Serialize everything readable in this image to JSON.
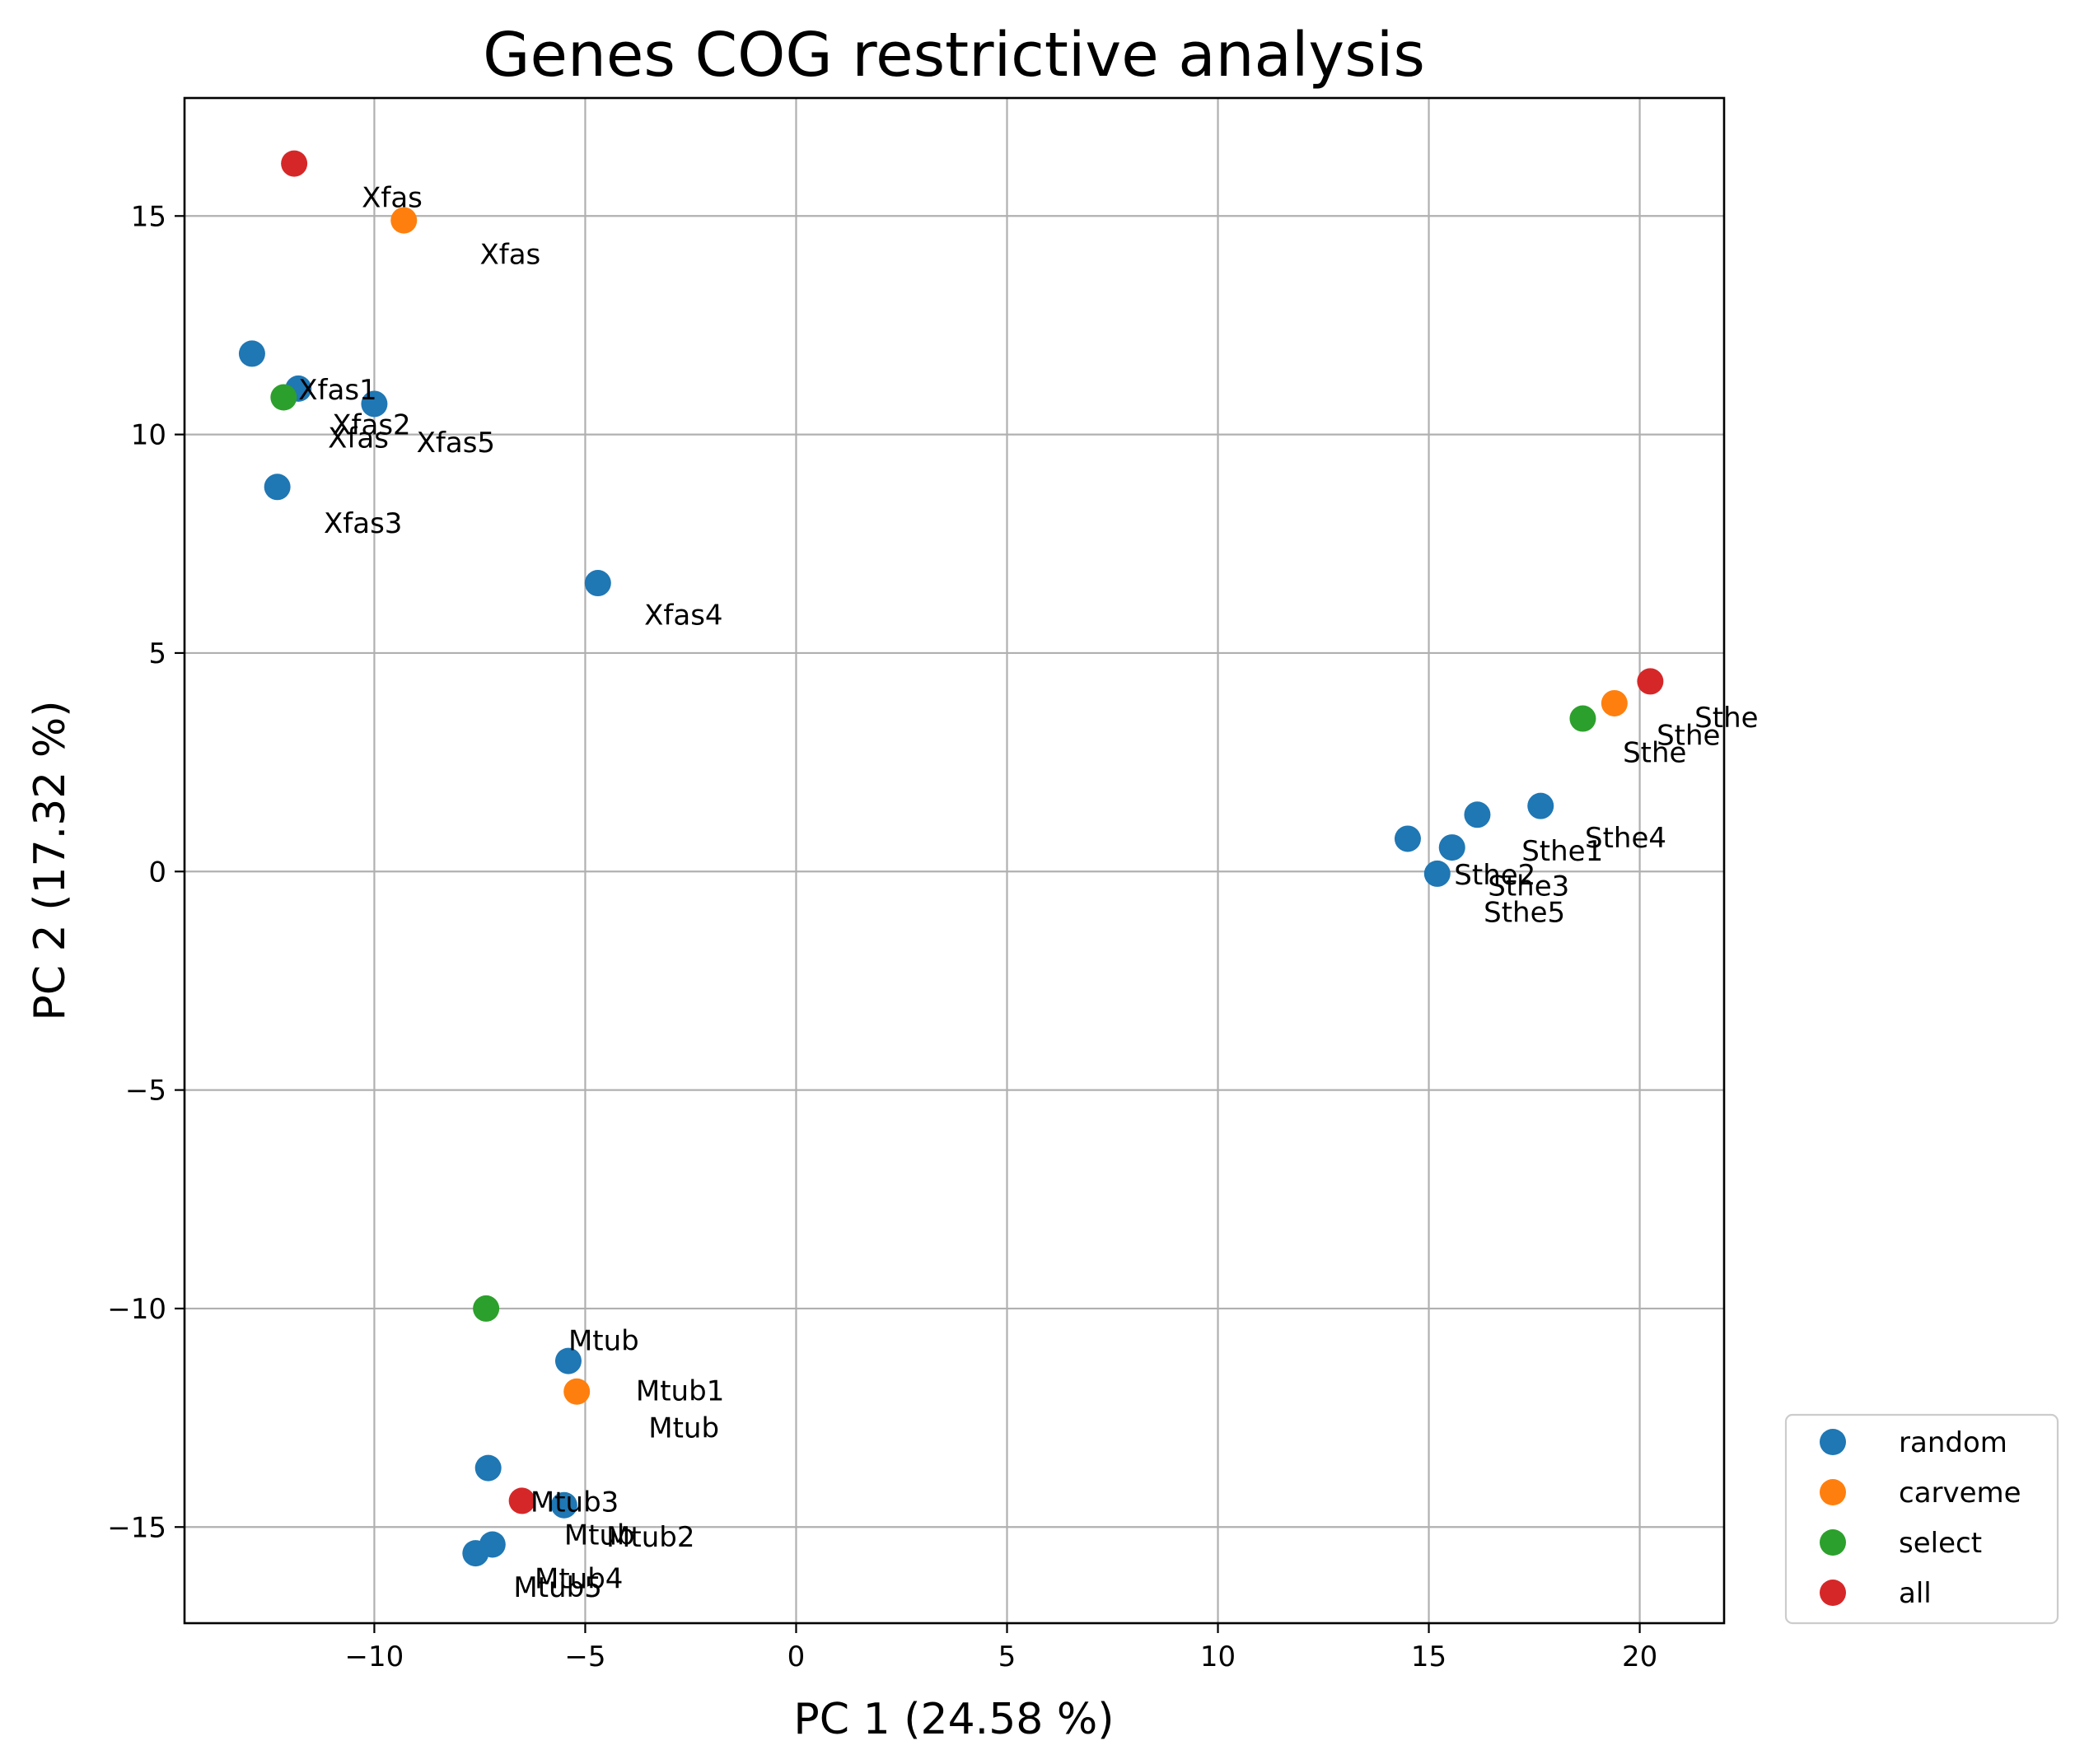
{
  "chart_data": {
    "type": "scatter",
    "title": "Genes COG restrictive analysis",
    "xlabel": "PC 1 (24.58 %)",
    "ylabel": "PC 2 (17.32 %)",
    "xlim": [
      -14.5,
      22
    ],
    "ylim": [
      -17.2,
      17.7
    ],
    "xticks": [
      -10,
      -5,
      0,
      5,
      10,
      15,
      20
    ],
    "yticks": [
      -15,
      -10,
      -5,
      0,
      5,
      10,
      15
    ],
    "grid": true,
    "legend_position": "outside-bottom-right",
    "series": [
      {
        "name": "random",
        "color": "#1f77b4",
        "points": [
          {
            "x": -12.9,
            "y": 11.85
          },
          {
            "x": -11.8,
            "y": 11.05
          },
          {
            "x": -10.0,
            "y": 10.7
          },
          {
            "x": -12.3,
            "y": 8.8
          },
          {
            "x": -4.7,
            "y": 6.6
          },
          {
            "x": 14.5,
            "y": 0.75
          },
          {
            "x": 15.55,
            "y": 0.55
          },
          {
            "x": 15.2,
            "y": -0.05
          },
          {
            "x": 16.15,
            "y": 1.3
          },
          {
            "x": 17.65,
            "y": 1.5
          },
          {
            "x": -5.4,
            "y": -11.2
          },
          {
            "x": -7.3,
            "y": -13.65
          },
          {
            "x": -5.5,
            "y": -14.5
          },
          {
            "x": -7.6,
            "y": -15.6
          },
          {
            "x": -7.2,
            "y": -15.4
          }
        ]
      },
      {
        "name": "carveme",
        "color": "#ff7f0e",
        "points": [
          {
            "x": -9.3,
            "y": 14.9
          },
          {
            "x": 19.4,
            "y": 3.85
          },
          {
            "x": -5.2,
            "y": -11.9
          }
        ]
      },
      {
        "name": "select",
        "color": "#2ca02c",
        "points": [
          {
            "x": -12.15,
            "y": 10.85
          },
          {
            "x": 18.65,
            "y": 3.5
          },
          {
            "x": -7.35,
            "y": -10.0
          }
        ]
      },
      {
        "name": "all",
        "color": "#d62728",
        "points": [
          {
            "x": -11.9,
            "y": 16.2
          },
          {
            "x": 20.25,
            "y": 4.35
          },
          {
            "x": -6.5,
            "y": -14.4
          }
        ]
      }
    ],
    "annotations": [
      {
        "text": "Xfas",
        "x": -10.3,
        "y": 15.2
      },
      {
        "text": "Xfas",
        "x": -7.5,
        "y": 13.9
      },
      {
        "text": "Xfas1",
        "x": -11.8,
        "y": 10.8
      },
      {
        "text": "Xfas2",
        "x": -11.0,
        "y": 10.0
      },
      {
        "text": "Xfas",
        "x": -11.1,
        "y": 9.7
      },
      {
        "text": "Xfas5",
        "x": -9.0,
        "y": 9.6
      },
      {
        "text": "Xfas3",
        "x": -11.2,
        "y": 7.75
      },
      {
        "text": "Xfas4",
        "x": -3.6,
        "y": 5.65
      },
      {
        "text": "Sthe",
        "x": 21.3,
        "y": 3.3
      },
      {
        "text": "Sthe",
        "x": 20.4,
        "y": 2.9
      },
      {
        "text": "Sthe",
        "x": 19.6,
        "y": 2.5
      },
      {
        "text": "Sthe4",
        "x": 18.7,
        "y": 0.55
      },
      {
        "text": "Sthe1",
        "x": 17.2,
        "y": 0.25
      },
      {
        "text": "Sthe2",
        "x": 15.6,
        "y": -0.3
      },
      {
        "text": "Sthe3",
        "x": 16.4,
        "y": -0.55
      },
      {
        "text": "Sthe5",
        "x": 16.3,
        "y": -1.15
      },
      {
        "text": "Mtub",
        "x": -5.4,
        "y": -10.95
      },
      {
        "text": "Mtub1",
        "x": -3.8,
        "y": -12.1
      },
      {
        "text": "Mtub",
        "x": -3.5,
        "y": -12.95
      },
      {
        "text": "Mtub3",
        "x": -6.3,
        "y": -14.65
      },
      {
        "text": "Mtub",
        "x": -5.5,
        "y": -15.4
      },
      {
        "text": "Mtub2",
        "x": -4.5,
        "y": -15.45
      },
      {
        "text": "Mtub4",
        "x": -6.2,
        "y": -16.4
      },
      {
        "text": "Mtub5",
        "x": -6.7,
        "y": -16.6
      }
    ]
  }
}
